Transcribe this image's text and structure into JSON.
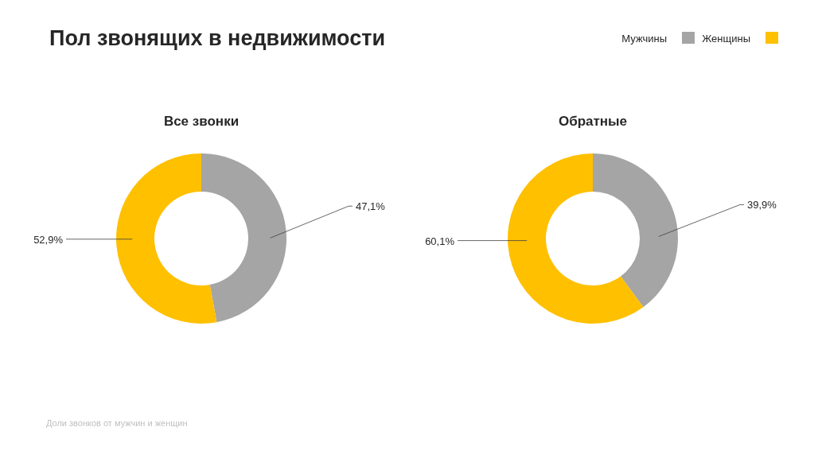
{
  "chart_data": [
    {
      "type": "donut",
      "title": "Все звонки",
      "categories": [
        "Мужчины",
        "Женщины"
      ],
      "values": [
        47.1,
        52.9
      ],
      "value_labels": [
        "47,1%",
        "52,9%"
      ],
      "colors": [
        "#a5a5a5",
        "#ffc000"
      ],
      "legend": "top right",
      "annotations": [
        "Пол звонящих в недвижимости",
        "Доли звонков от мужчин и женщин"
      ]
    },
    {
      "type": "donut",
      "title": "Обратные",
      "values": [
        39.9,
        60.1
      ],
      "value_labels": [
        "39,9%",
        "60,1%"
      ],
      "colors": [
        "#a5a5a5",
        "#ffc000"
      ]
    }
  ]
}
